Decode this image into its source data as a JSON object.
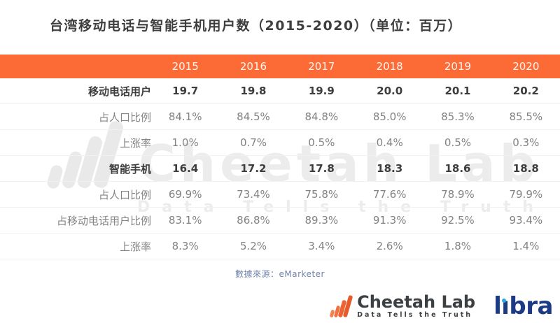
{
  "title": "台湾移动电话与智能手机用户数（2015-2020）（单位：百万）",
  "table": {
    "years": [
      "2015",
      "2016",
      "2017",
      "2018",
      "2019",
      "2020"
    ],
    "rows": [
      {
        "label": "移动电话用户",
        "bold": true,
        "values": [
          "19.7",
          "19.8",
          "19.9",
          "20.0",
          "20.1",
          "20.2"
        ]
      },
      {
        "label": "占人口比例",
        "bold": false,
        "values": [
          "84.1%",
          "84.5%",
          "84.8%",
          "85.0%",
          "85.3%",
          "85.5%"
        ]
      },
      {
        "label": "上涨率",
        "bold": false,
        "values": [
          "1.0%",
          "0.7%",
          "0.5%",
          "0.4%",
          "0.5%",
          "0.3%"
        ]
      },
      {
        "label": "智能手机",
        "bold": true,
        "values": [
          "16.4",
          "17.2",
          "17.8",
          "18.3",
          "18.6",
          "18.8"
        ]
      },
      {
        "label": "占人口比例",
        "bold": false,
        "values": [
          "69.9%",
          "73.4%",
          "75.8%",
          "77.6%",
          "78.9%",
          "79.9%"
        ]
      },
      {
        "label": "占移动电话用户比例",
        "bold": false,
        "values": [
          "83.1%",
          "86.8%",
          "89.3%",
          "91.3%",
          "92.5%",
          "93.4%"
        ]
      },
      {
        "label": "上涨率",
        "bold": false,
        "values": [
          "8.3%",
          "5.2%",
          "3.4%",
          "2.6%",
          "1.8%",
          "1.4%"
        ]
      }
    ]
  },
  "source": "數據來源：eMarketer",
  "watermark": {
    "brand": "Cheetah Lab",
    "tagline": "Data Tells the Truth"
  },
  "footer": {
    "brand": "Cheetah Lab",
    "tagline": "Data Tells the Truth",
    "partner": "libra"
  },
  "colors": {
    "header_bg": "#fc6a35",
    "bold_text": "#3d3d3d",
    "normal_text": "#828282",
    "source_text": "#7185ac",
    "cheetah_orange": "#e85a2b",
    "libra_navy": "#1d3a85",
    "libra_dot_blue": "#2ba9e0"
  },
  "chart_data": {
    "type": "table",
    "title": "台湾移动电话与智能手机用户数（2015-2020）（单位：百万）",
    "unit": "百万",
    "categories": [
      "2015",
      "2016",
      "2017",
      "2018",
      "2019",
      "2020"
    ],
    "series": [
      {
        "name": "移动电话用户",
        "unit": "百万",
        "values": [
          19.7,
          19.8,
          19.9,
          20.0,
          20.1,
          20.2
        ]
      },
      {
        "name": "占人口比例",
        "unit": "%",
        "values": [
          84.1,
          84.5,
          84.8,
          85.0,
          85.3,
          85.5
        ]
      },
      {
        "name": "上涨率",
        "unit": "%",
        "values": [
          1.0,
          0.7,
          0.5,
          0.4,
          0.5,
          0.3
        ]
      },
      {
        "name": "智能手机",
        "unit": "百万",
        "values": [
          16.4,
          17.2,
          17.8,
          18.3,
          18.6,
          18.8
        ]
      },
      {
        "name": "占人口比例",
        "unit": "%",
        "values": [
          69.9,
          73.4,
          75.8,
          77.6,
          78.9,
          79.9
        ]
      },
      {
        "name": "占移动电话用户比例",
        "unit": "%",
        "values": [
          83.1,
          86.8,
          89.3,
          91.3,
          92.5,
          93.4
        ]
      },
      {
        "name": "上涨率",
        "unit": "%",
        "values": [
          8.3,
          5.2,
          3.4,
          2.6,
          1.8,
          1.4
        ]
      }
    ],
    "source": "數據來源：eMarketer",
    "legend_position": "none",
    "grid": "horizontal-row-separators"
  }
}
